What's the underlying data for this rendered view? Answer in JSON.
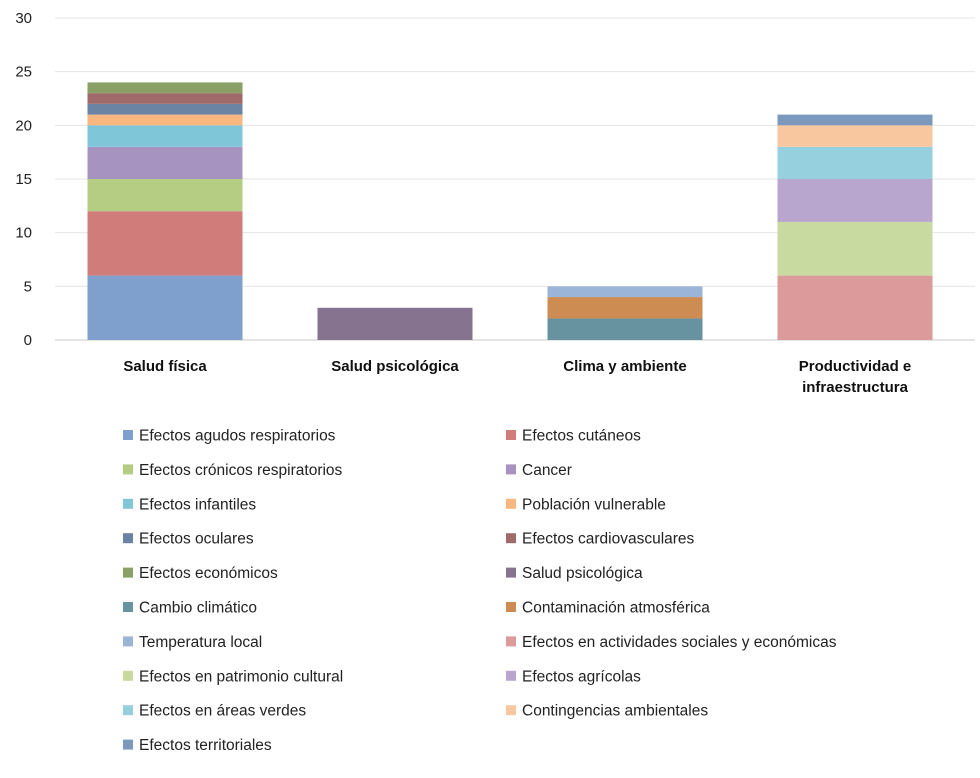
{
  "chart_data": {
    "type": "bar",
    "stacked": true,
    "categories": [
      "Salud física",
      "Salud psicológica",
      "Clima y ambiente",
      "Productividad e infraestructura"
    ],
    "category_lines": [
      [
        "Salud física"
      ],
      [
        "Salud psicológica"
      ],
      [
        "Clima y ambiente"
      ],
      [
        "Productividad e",
        "infraestructura"
      ]
    ],
    "ylim": [
      0,
      30
    ],
    "yticks": [
      0,
      5,
      10,
      15,
      20,
      25,
      30
    ],
    "grid": true,
    "legend_position": "bottom",
    "series": [
      {
        "name": "Efectos  agudos respiratorios",
        "color": "#7f9fcc",
        "values": [
          6,
          0,
          0,
          0
        ]
      },
      {
        "name": "Efectos cutáneos",
        "color": "#cf7c7a",
        "values": [
          6,
          0,
          0,
          0
        ]
      },
      {
        "name": "Efectos  crónicos respiratorios",
        "color": "#b5cd83",
        "values": [
          3,
          0,
          0,
          0
        ]
      },
      {
        "name": "Cancer",
        "color": "#a793c0",
        "values": [
          3,
          0,
          0,
          0
        ]
      },
      {
        "name": "Efectos infantiles",
        "color": "#7fc7d8",
        "values": [
          2,
          0,
          0,
          0
        ]
      },
      {
        "name": "Población vulnerable",
        "color": "#f8b77f",
        "values": [
          1,
          0,
          0,
          0
        ]
      },
      {
        "name": "Efectos oculares",
        "color": "#6b84a3",
        "values": [
          1,
          0,
          0,
          0
        ]
      },
      {
        "name": "Efectos cardiovasculares",
        "color": "#a06a6a",
        "values": [
          1,
          0,
          0,
          0
        ]
      },
      {
        "name": "Efectos económicos",
        "color": "#8aa066",
        "values": [
          1,
          0,
          0,
          0
        ]
      },
      {
        "name": "Salud psicológica",
        "color": "#857390",
        "values": [
          0,
          3,
          0,
          0
        ]
      },
      {
        "name": "Cambio climático",
        "color": "#66939f",
        "values": [
          0,
          0,
          2,
          0
        ]
      },
      {
        "name": "Contaminación atmosférica",
        "color": "#cc8c52",
        "values": [
          0,
          0,
          2,
          0
        ]
      },
      {
        "name": "Temperatura local",
        "color": "#9bb5d9",
        "values": [
          0,
          0,
          1,
          0
        ]
      },
      {
        "name": "Efectos en actividades sociales y económicas",
        "color": "#dc9a9a",
        "values": [
          0,
          0,
          0,
          6
        ]
      },
      {
        "name": "Efectos en patrimonio cultural",
        "color": "#c8da9f",
        "values": [
          0,
          0,
          0,
          5
        ]
      },
      {
        "name": "Efectos agrícolas",
        "color": "#b9a6cf",
        "values": [
          0,
          0,
          0,
          4
        ]
      },
      {
        "name": "Efectos en áreas verdes",
        "color": "#96d0de",
        "values": [
          0,
          0,
          0,
          3
        ]
      },
      {
        "name": "Contingencias ambientales",
        "color": "#f9c79f",
        "values": [
          0,
          0,
          0,
          2
        ]
      },
      {
        "name": "Efectos territoriales",
        "color": "#7b98bd",
        "values": [
          0,
          0,
          0,
          1
        ]
      }
    ]
  }
}
